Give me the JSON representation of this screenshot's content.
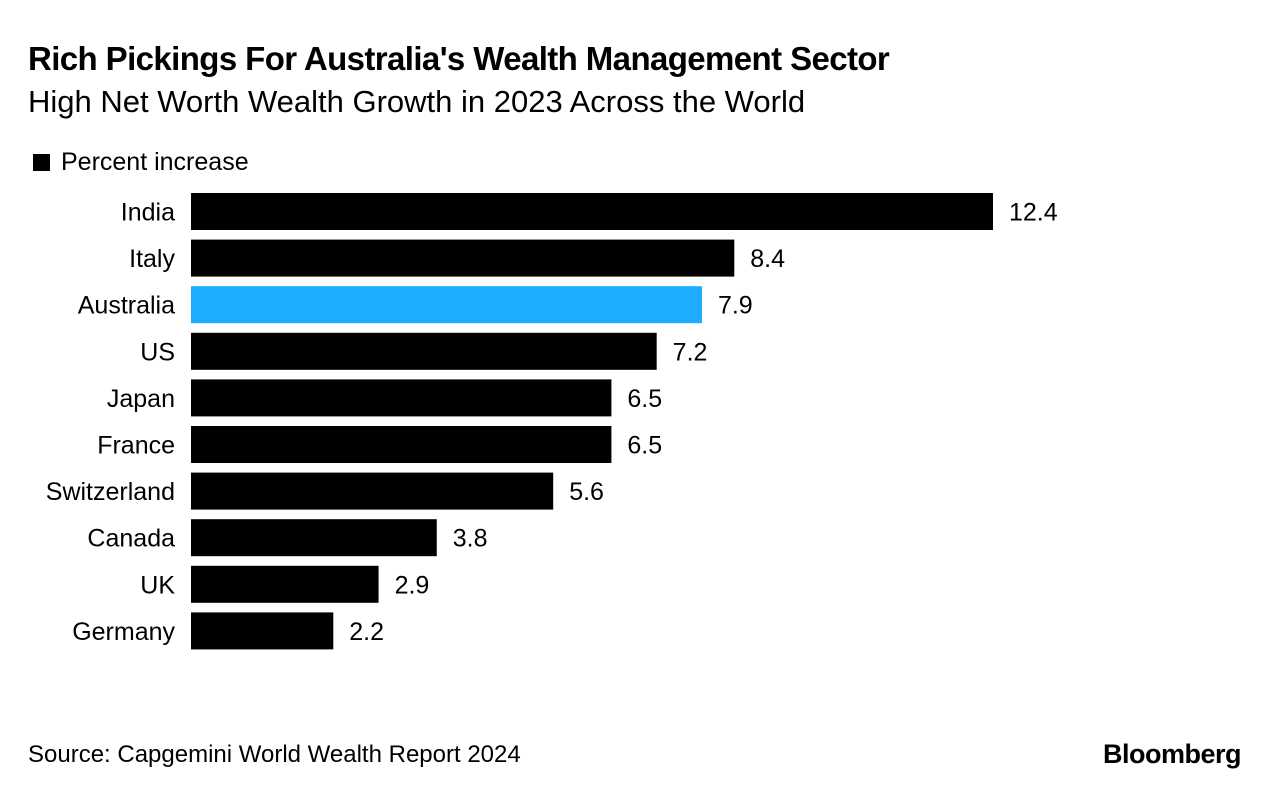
{
  "chart_data": {
    "type": "bar",
    "orientation": "horizontal",
    "title": "Rich Pickings For Australia's Wealth Management Sector",
    "subtitle": "High Net Worth Wealth Growth in 2023 Across the World",
    "legend": [
      {
        "label": "Percent increase",
        "color": "#000000"
      }
    ],
    "categories": [
      "India",
      "Italy",
      "Australia",
      "US",
      "Japan",
      "France",
      "Switzerland",
      "Canada",
      "UK",
      "Germany"
    ],
    "values": [
      12.4,
      8.4,
      7.9,
      7.2,
      6.5,
      6.5,
      5.6,
      3.8,
      2.9,
      2.2
    ],
    "value_labels": [
      "12.4",
      "8.4",
      "7.9",
      "7.2",
      "6.5",
      "6.5",
      "5.6",
      "3.8",
      "2.9",
      "2.2"
    ],
    "highlight": {
      "category": "Australia",
      "color": "#1CADFF"
    },
    "bar_color": "#000000",
    "xlim": [
      0,
      12.4
    ],
    "grid": false
  },
  "footer": {
    "source": "Source: Capgemini World Wealth Report 2024",
    "brand": "Bloomberg"
  }
}
